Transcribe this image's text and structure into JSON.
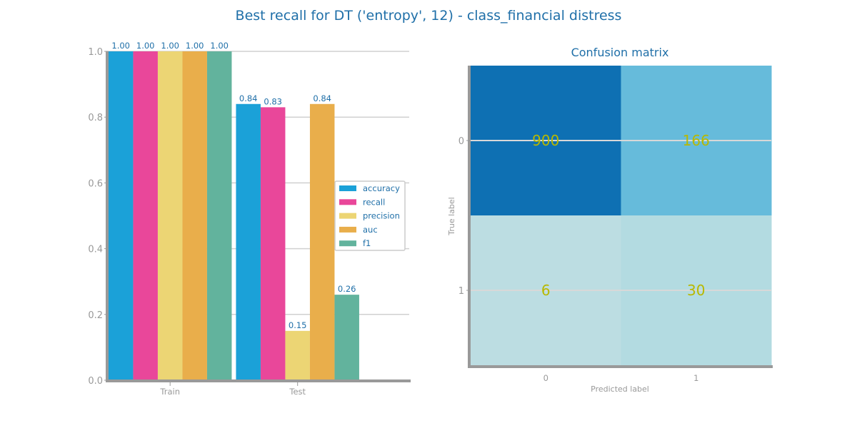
{
  "figure": {
    "title": "Best recall for DT ('entropy', 12) - class_financial distress"
  },
  "chart_data": [
    {
      "type": "bar",
      "categories": [
        "Train",
        "Test"
      ],
      "series": [
        {
          "name": "accuracy",
          "values": [
            1.0,
            0.84
          ],
          "labels": [
            "1.00",
            "0.84"
          ],
          "color": "#1ba1d8"
        },
        {
          "name": "recall",
          "values": [
            1.0,
            0.83
          ],
          "labels": [
            "1.00",
            "0.83"
          ],
          "color": "#e9479a"
        },
        {
          "name": "precision",
          "values": [
            1.0,
            0.15
          ],
          "labels": [
            "1.00",
            "0.15"
          ],
          "color": "#ecd574"
        },
        {
          "name": "auc",
          "values": [
            1.0,
            0.84
          ],
          "labels": [
            "1.00",
            "0.84"
          ],
          "color": "#e9ae4b"
        },
        {
          "name": "f1",
          "values": [
            1.0,
            0.26
          ],
          "labels": [
            "1.00",
            "0.26"
          ],
          "color": "#62b39d"
        }
      ],
      "ylim": [
        0,
        1.0
      ],
      "yticks": [
        "0.0",
        "0.2",
        "0.4",
        "0.6",
        "0.8",
        "1.0"
      ],
      "grid": true,
      "legend": "center-right"
    },
    {
      "type": "heatmap",
      "title": "Confusion matrix",
      "xlabel": "Predicted label",
      "ylabel": "True label",
      "x_ticks": [
        "0",
        "1"
      ],
      "y_ticks": [
        "0",
        "1"
      ],
      "values": [
        [
          900,
          166
        ],
        [
          6,
          30
        ]
      ],
      "colors": [
        [
          "#0e70b3",
          "#66bbdb"
        ],
        [
          "#bcdde2",
          "#b3dbe1"
        ]
      ]
    }
  ]
}
